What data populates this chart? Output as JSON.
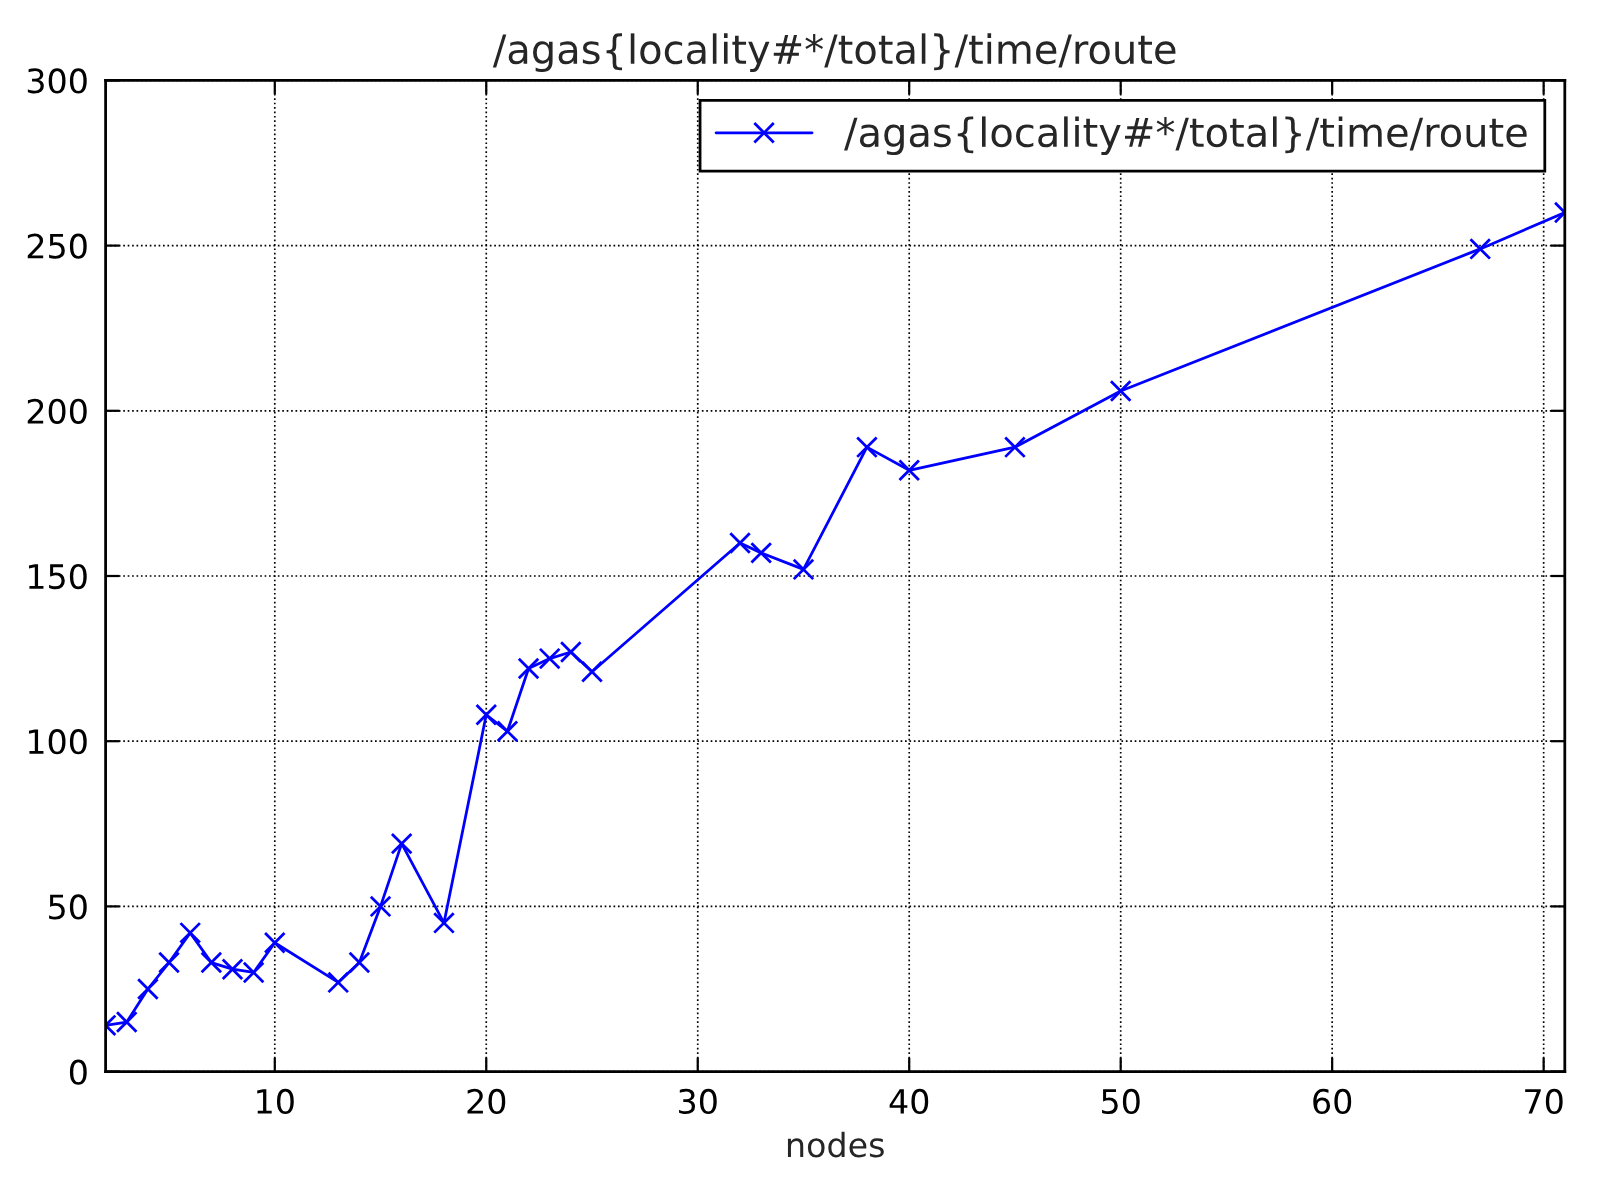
{
  "chart_data": {
    "type": "line",
    "title": "/agas{locality#*/total}/time/route",
    "xlabel": "nodes",
    "x": [
      2,
      3,
      4,
      5,
      6,
      7,
      8,
      9,
      10,
      13,
      14,
      15,
      16,
      18,
      20,
      21,
      22,
      23,
      24,
      25,
      32,
      33,
      35,
      38,
      40,
      45,
      50,
      67,
      71
    ],
    "series": [
      {
        "name": "/agas{locality#*/total}/time/route",
        "color": "#0000ff",
        "values": [
          14,
          15,
          25,
          33,
          42,
          33,
          31,
          30,
          39,
          27,
          33,
          50,
          69,
          45,
          108,
          103,
          122,
          125,
          127,
          121,
          160,
          157,
          152,
          189,
          182,
          189,
          206,
          249,
          260
        ]
      }
    ],
    "xlim": [
      2,
      71
    ],
    "ylim": [
      0,
      300
    ],
    "xticks": [
      10,
      20,
      30,
      40,
      50,
      60,
      70
    ],
    "yticks": [
      0,
      50,
      100,
      150,
      200,
      250,
      300
    ],
    "grid": true,
    "legend": "top right",
    "marker": "cross",
    "line_style": "solid"
  }
}
